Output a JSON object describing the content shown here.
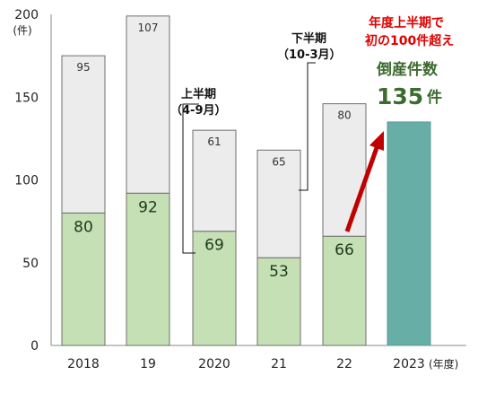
{
  "chart_data": {
    "type": "bar",
    "stacked": true,
    "categories": [
      "2018",
      "19",
      "2020",
      "21",
      "22",
      "2023"
    ],
    "x_suffix": "(年度)",
    "y_unit": "(件)",
    "ylim": [
      0,
      200
    ],
    "yticks": [
      0,
      50,
      100,
      150,
      200
    ],
    "grid": false,
    "series": [
      {
        "values": [
          80,
          92,
          69,
          53,
          66,
          null
        ]
      },
      {
        "values": [
          95,
          107,
          61,
          65,
          80,
          null
        ]
      },
      {
        "values": [
          null,
          null,
          null,
          null,
          null,
          135
        ]
      }
    ],
    "colors": {
      "first_half": "#c5e0b4",
      "second_half": "#ececec",
      "total_2023": "#66aea6",
      "border": "#6f6f6f",
      "arrow": "#c00000"
    },
    "annotations": {
      "first_half_label": [
        "上半期",
        "（4-9月）"
      ],
      "second_half_label": [
        "下半期",
        "（10-3月）"
      ],
      "red_note": [
        "年度上半期で",
        "初の100件超え"
      ],
      "green_title": "倒産件数",
      "green_value": "135",
      "green_unit": "件"
    }
  }
}
